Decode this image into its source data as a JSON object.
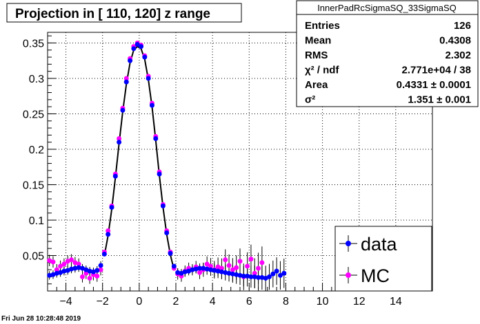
{
  "page": {
    "title": "Projection in [ 110, 120] z range",
    "timestamp": "Fri Jun 28 10:28:48 2019"
  },
  "stats": {
    "name": "InnerPadRcSigmaSQ_33SigmaSQ",
    "rows": [
      {
        "label": "Entries",
        "value": "126"
      },
      {
        "label": "Mean",
        "value": "0.4308"
      },
      {
        "label": "RMS",
        "value": "2.302"
      },
      {
        "label": "χ² / ndf",
        "value": "2.771e+04 / 38"
      },
      {
        "label": "Area",
        "value": "0.4331 ± 0.0001"
      },
      {
        "label": "σ²",
        "value": "1.351 ± 0.001"
      }
    ]
  },
  "legend": {
    "entries": [
      {
        "label": "data",
        "color": "#0000ff"
      },
      {
        "label": "MC",
        "color": "#ff00ff"
      }
    ]
  },
  "colors": {
    "data": "#0000ff",
    "mc": "#ff00ff",
    "fit": "#000000",
    "grid": "#000000"
  },
  "chart_data": {
    "type": "scatter",
    "title": "Projection in [ 110, 120] z range",
    "xlabel": "",
    "ylabel": "",
    "xlim": [
      -5,
      16
    ],
    "ylim": [
      0,
      0.365
    ],
    "grid": true,
    "legend_position": "bottom-right",
    "x_ticks": [
      -4,
      -2,
      0,
      2,
      4,
      6,
      8,
      10,
      12,
      14
    ],
    "y_ticks": [
      0.05,
      0.1,
      0.15,
      0.2,
      0.25,
      0.3,
      0.35
    ],
    "x_tick_labels": [
      "−4",
      "−2",
      "0",
      "2",
      "4",
      "6",
      "8",
      "10",
      "12",
      "14"
    ],
    "y_tick_labels": [
      "0.05",
      "0.1",
      "0.15",
      "0.2",
      "0.25",
      "0.3",
      "0.35"
    ],
    "series": [
      {
        "name": "data",
        "x": [
          -4.9,
          -4.7,
          -4.5,
          -4.3,
          -4.1,
          -3.9,
          -3.7,
          -3.5,
          -3.3,
          -3.1,
          -2.9,
          -2.7,
          -2.5,
          -2.3,
          -2.1,
          -1.9,
          -1.7,
          -1.5,
          -1.3,
          -1.1,
          -0.9,
          -0.7,
          -0.5,
          -0.3,
          -0.1,
          0.1,
          0.3,
          0.5,
          0.7,
          0.9,
          1.1,
          1.3,
          1.5,
          1.7,
          1.9,
          2.1,
          2.3,
          2.5,
          2.7,
          2.9,
          3.1,
          3.3,
          3.5,
          3.7,
          3.9,
          4.1,
          4.3,
          4.5,
          4.7,
          4.9,
          5.1,
          5.3,
          5.5,
          5.7,
          5.9,
          6.1,
          6.3,
          6.5,
          6.7,
          6.9,
          7.1,
          7.3,
          7.5,
          7.7,
          7.9
        ],
        "y": [
          0.022,
          0.023,
          0.025,
          0.026,
          0.028,
          0.029,
          0.031,
          0.032,
          0.033,
          0.032,
          0.03,
          0.028,
          0.027,
          0.029,
          0.036,
          0.052,
          0.08,
          0.118,
          0.162,
          0.21,
          0.255,
          0.295,
          0.325,
          0.342,
          0.348,
          0.345,
          0.33,
          0.3,
          0.262,
          0.215,
          0.165,
          0.12,
          0.082,
          0.053,
          0.035,
          0.026,
          0.025,
          0.027,
          0.028,
          0.03,
          0.031,
          0.032,
          0.032,
          0.031,
          0.03,
          0.029,
          0.028,
          0.027,
          0.026,
          0.025,
          0.024,
          0.023,
          0.022,
          0.021,
          0.021,
          0.02,
          0.02,
          0.019,
          0.019,
          0.018,
          0.02,
          0.024,
          0.028,
          0.022,
          0.025
        ]
      },
      {
        "name": "MC",
        "x": [
          -4.9,
          -4.7,
          -4.5,
          -4.3,
          -4.1,
          -3.9,
          -3.7,
          -3.5,
          -3.3,
          -3.1,
          -2.9,
          -2.7,
          -2.5,
          -2.3,
          -2.1,
          -1.9,
          -1.7,
          -1.5,
          -1.3,
          -1.1,
          -0.9,
          -0.7,
          -0.5,
          -0.3,
          -0.1,
          0.1,
          0.3,
          0.5,
          0.7,
          0.9,
          1.1,
          1.3,
          1.5,
          1.7,
          1.9,
          2.1,
          2.3,
          2.5,
          2.7,
          2.9,
          3.1,
          3.3,
          3.5,
          3.7,
          3.9,
          4.1,
          4.3,
          4.5,
          4.7,
          4.9,
          5.1,
          5.3,
          5.5,
          5.7,
          5.9,
          6.1,
          6.3,
          6.5,
          6.7
        ],
        "y": [
          0.043,
          0.041,
          0.03,
          0.035,
          0.038,
          0.042,
          0.044,
          0.04,
          0.038,
          0.02,
          0.025,
          0.018,
          0.023,
          0.021,
          0.03,
          0.055,
          0.085,
          0.12,
          0.165,
          0.215,
          0.258,
          0.3,
          0.328,
          0.345,
          0.35,
          0.347,
          0.332,
          0.303,
          0.265,
          0.218,
          0.168,
          0.122,
          0.085,
          0.055,
          0.032,
          0.024,
          0.021,
          0.028,
          0.032,
          0.03,
          0.034,
          0.026,
          0.03,
          0.038,
          0.035,
          0.03,
          0.034,
          0.032,
          0.044,
          0.036,
          0.03,
          0.033,
          0.042,
          0.02,
          0.035,
          0.045,
          0.025,
          0.032,
          0.04
        ]
      },
      {
        "name": "",
        "type": "line",
        "x": [
          -1.9,
          -1.7,
          -1.5,
          -1.3,
          -1.1,
          -0.9,
          -0.7,
          -0.5,
          -0.3,
          -0.1,
          0.1,
          0.3,
          0.5,
          0.7,
          0.9,
          1.1,
          1.3,
          1.5,
          1.7,
          1.9
        ],
        "y": [
          0.05,
          0.078,
          0.115,
          0.16,
          0.208,
          0.253,
          0.292,
          0.322,
          0.34,
          0.345,
          0.342,
          0.327,
          0.298,
          0.26,
          0.213,
          0.163,
          0.118,
          0.08,
          0.051,
          0.03
        ]
      }
    ]
  }
}
